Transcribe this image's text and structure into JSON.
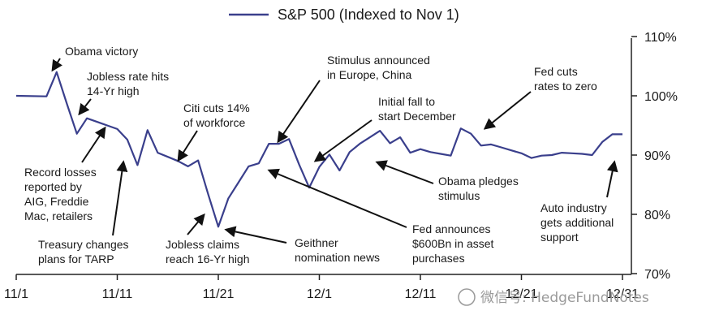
{
  "chart_data": {
    "type": "line",
    "series": [
      {
        "name": "S&P 500 (Indexed to Nov 1)",
        "color": "#3a3f8c",
        "x": [
          0,
          3,
          4,
          5,
          6,
          7,
          8,
          9,
          10,
          11,
          12,
          13,
          14,
          15,
          16,
          17,
          18,
          19,
          20,
          21,
          22,
          23,
          24,
          25,
          26,
          27,
          28,
          29,
          30,
          31,
          32,
          33,
          34,
          35,
          36,
          37,
          38,
          39,
          40,
          41,
          42,
          43,
          44,
          45,
          46,
          47,
          48,
          49,
          50,
          51,
          52,
          53,
          54,
          55,
          56,
          57,
          58,
          59,
          60
        ],
        "values": [
          100.0,
          99.9,
          104.0,
          98.7,
          93.6,
          96.2,
          95.6,
          95.0,
          94.4,
          92.6,
          88.3,
          94.2,
          90.4,
          89.7,
          89.0,
          88.1,
          89.1,
          83.4,
          77.9,
          82.7,
          85.4,
          88.1,
          88.6,
          91.9,
          91.9,
          92.7,
          88.4,
          84.5,
          88.0,
          90.1,
          87.4,
          90.5,
          91.9,
          93.0,
          94.1,
          92.0,
          93.0,
          90.4,
          91.0,
          90.5,
          90.2,
          89.9,
          94.5,
          93.6,
          91.6,
          91.8,
          91.3,
          90.8,
          90.3,
          89.5,
          89.9,
          90.0,
          90.4,
          90.3,
          90.2,
          90.0,
          92.2,
          93.5,
          93.5
        ]
      }
    ],
    "x_ticks": [
      "11/1",
      "11/11",
      "11/21",
      "12/1",
      "12/11",
      "12/21",
      "12/31"
    ],
    "y_ticks": [
      "110%",
      "100%",
      "90%",
      "80%",
      "70%"
    ],
    "ylim": [
      70,
      110
    ],
    "grid": false,
    "legend": "top-center",
    "annotations": [
      {
        "id": "obama-victory",
        "lines": [
          "Obama victory"
        ]
      },
      {
        "id": "jobless-14yr",
        "lines": [
          "Jobless rate hits",
          "14-Yr high"
        ]
      },
      {
        "id": "citi-cuts",
        "lines": [
          "Citi cuts 14%",
          "of workforce"
        ]
      },
      {
        "id": "record-losses",
        "lines": [
          "Record losses",
          "reported by",
          "AIG, Freddie",
          "Mac, retailers"
        ]
      },
      {
        "id": "treasury",
        "lines": [
          "Treasury changes",
          "plans for TARP"
        ]
      },
      {
        "id": "jobless-16yr",
        "lines": [
          "Jobless claims",
          "reach 16-Yr high"
        ]
      },
      {
        "id": "geithner",
        "lines": [
          "Geithner",
          "nomination news"
        ]
      },
      {
        "id": "stimulus-europe",
        "lines": [
          "Stimulus announced",
          "in Europe, China"
        ]
      },
      {
        "id": "initial-fall",
        "lines": [
          "Initial fall to",
          "start December"
        ]
      },
      {
        "id": "fed-600bn",
        "lines": [
          "Fed announces",
          "$600Bn in asset",
          "purchases"
        ]
      },
      {
        "id": "obama-stimulus",
        "lines": [
          "Obama pledges",
          "stimulus"
        ]
      },
      {
        "id": "fed-cuts",
        "lines": [
          "Fed cuts",
          "rates to zero"
        ]
      },
      {
        "id": "auto-industry",
        "lines": [
          "Auto industry",
          "gets additional",
          "support"
        ]
      }
    ],
    "watermark": "微信号: HedgeFundNotes"
  }
}
